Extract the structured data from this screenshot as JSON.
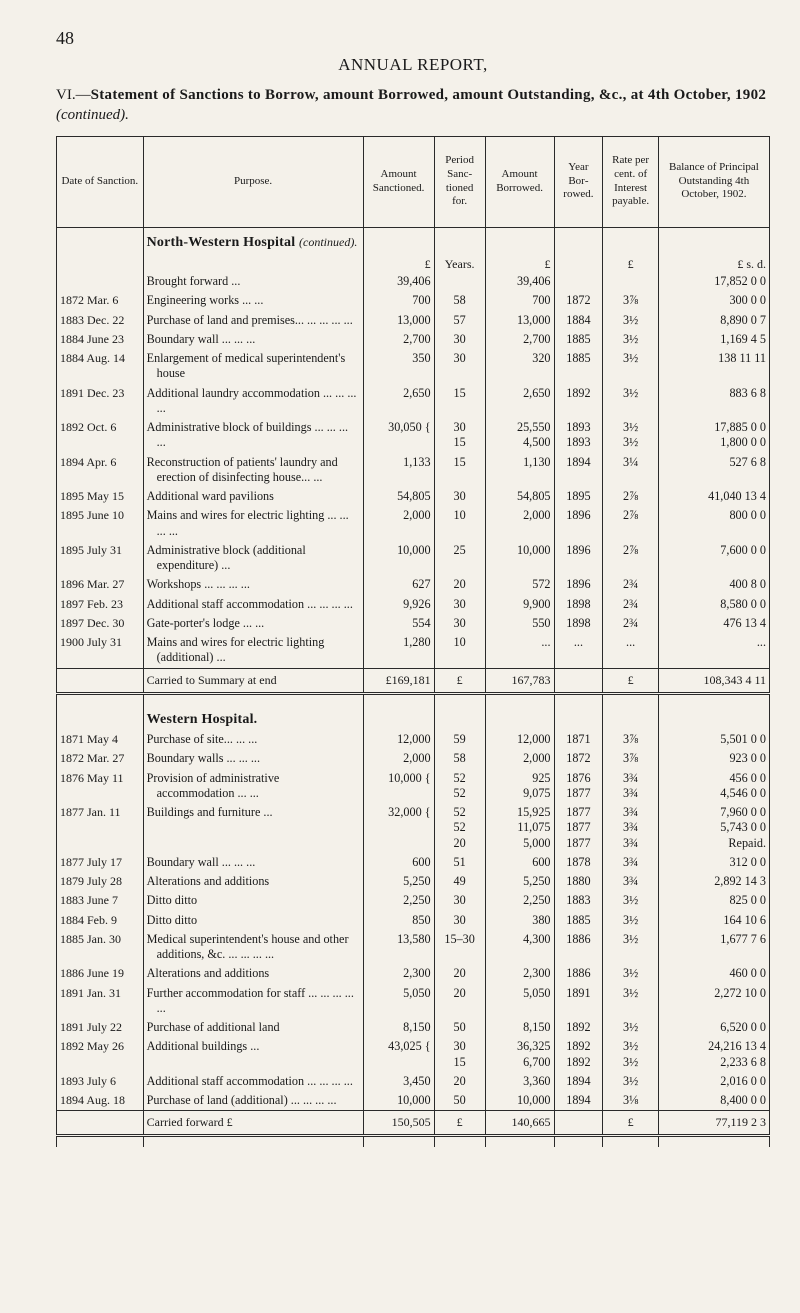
{
  "page_number": "48",
  "running_head": "ANNUAL REPORT,",
  "section_title_prefix": "VI.—",
  "section_title_main": "Statement of Sanctions to Borrow, amount Borrowed, amount Outstanding, &c., at 4th October, 1902",
  "section_title_suffix": " (continued).",
  "headers": {
    "date": "Date of Sanction.",
    "purpose": "Purpose.",
    "sanctioned": "Amount Sanctioned.",
    "period": "Period Sanc­tioned for.",
    "borrowed": "Amount Borrowed.",
    "year": "Year Bor­rowed.",
    "rate": "Rate per cent. of Interest pay­able.",
    "balance": "Balance of Principal Outstanding 4th October, 1902."
  },
  "unit_row": {
    "sanctioned": "£",
    "period": "Years.",
    "borrowed": "£",
    "rate": "£",
    "balance": "£   s.   d."
  },
  "hospitals": [
    {
      "group_name": "North-Western Hospital",
      "group_sub": "(continued).",
      "rows": [
        {
          "date": "",
          "purpose": "Brought forward   ...",
          "sanc": "39,406",
          "period": "",
          "borr": "39,406",
          "year": "",
          "rate": "",
          "bal": "17,852   0   0"
        },
        {
          "date": "1872 Mar.  6",
          "purpose": "Engineering works ... ...",
          "sanc": "700",
          "period": "58",
          "borr": "700",
          "year": "1872",
          "rate": "3⅞",
          "bal": "300   0   0"
        },
        {
          "date": "1883 Dec. 22",
          "purpose": "Purchase of land and pre­mises... ... ... ... ...",
          "sanc": "13,000",
          "period": "57",
          "borr": "13,000",
          "year": "1884",
          "rate": "3½",
          "bal": "8,890   0   7"
        },
        {
          "date": "1884 June 23",
          "purpose": "Boundary wall ... ... ...",
          "sanc": "2,700",
          "period": "30",
          "borr": "2,700",
          "year": "1885",
          "rate": "3½",
          "bal": "1,169   4   5"
        },
        {
          "date": "1884 Aug. 14",
          "purpose": "Enlargement of medical superintendent's house",
          "sanc": "350",
          "period": "30",
          "borr": "320",
          "year": "1885",
          "rate": "3½",
          "bal": "138 11 11"
        },
        {
          "date": "1891 Dec. 23",
          "purpose": "Additional laundry accom­modation ... ... ... ...",
          "sanc": "2,650",
          "period": "15",
          "borr": "2,650",
          "year": "1892",
          "rate": "3½",
          "bal": "883   6   8"
        },
        {
          "date": "1892 Oct.  6",
          "purpose": "Administrative block of buildings ... ... ... ...",
          "sanc": "30,050 {",
          "period": "30\n15",
          "borr": "25,550\n4,500",
          "year": "1893\n1893",
          "rate": "3½\n3½",
          "bal": "17,885   0   0\n1,800   0   0"
        },
        {
          "date": "1894 Apr.  6",
          "purpose": "Reconstruction of patients' laundry and erection of disinfecting house... ...",
          "sanc": "1,133",
          "period": "15",
          "borr": "1,130",
          "year": "1894",
          "rate": "3¼",
          "bal": "527   6   8"
        },
        {
          "date": "1895 May 15",
          "purpose": "Additional ward pavilions",
          "sanc": "54,805",
          "period": "30",
          "borr": "54,805",
          "year": "1895",
          "rate": "2⅞",
          "bal": "41,040 13   4"
        },
        {
          "date": "1895 June 10",
          "purpose": "Mains and wires for electric lighting ... ... ... ...",
          "sanc": "2,000",
          "period": "10",
          "borr": "2,000",
          "year": "1896",
          "rate": "2⅞",
          "bal": "800   0   0"
        },
        {
          "date": "1895 July 31",
          "purpose": "Administrative block (ad­ditional expenditure) ...",
          "sanc": "10,000",
          "period": "25",
          "borr": "10,000",
          "year": "1896",
          "rate": "2⅞",
          "bal": "7,600   0   0"
        },
        {
          "date": "1896 Mar. 27",
          "purpose": "Workshops ... ... ... ...",
          "sanc": "627",
          "period": "20",
          "borr": "572",
          "year": "1896",
          "rate": "2¾",
          "bal": "400   8   0"
        },
        {
          "date": "1897 Feb. 23",
          "purpose": "Additional staff accommo­dation   ... ... ... ...",
          "sanc": "9,926",
          "period": "30",
          "borr": "9,900",
          "year": "1898",
          "rate": "2¾",
          "bal": "8,580   0   0"
        },
        {
          "date": "1897 Dec. 30",
          "purpose": "Gate-porter's lodge ... ...",
          "sanc": "554",
          "period": "30",
          "borr": "550",
          "year": "1898",
          "rate": "2¾",
          "bal": "476 13   4"
        },
        {
          "date": "1900 July 31",
          "purpose": "Mains and wires for electric lighting (additional) ...",
          "sanc": "1,280",
          "period": "10",
          "borr": "...",
          "year": "...",
          "rate": "...",
          "bal": "..."
        }
      ],
      "total": {
        "label": "Carried to Summary at end",
        "sanc": "£169,181",
        "borr_prefix": "£",
        "borr": "167,783",
        "bal_prefix": "£",
        "bal": "108,343   4 11"
      }
    },
    {
      "group_name": "Western Hospital.",
      "group_sub": "",
      "rows": [
        {
          "date": "1871 May   4",
          "purpose": "Purchase of site... ... ...",
          "sanc": "12,000",
          "period": "59",
          "borr": "12,000",
          "year": "1871",
          "rate": "3⅞",
          "bal": "5,501   0   0"
        },
        {
          "date": "1872 Mar. 27",
          "purpose": "Boundary walls ... ... ...",
          "sanc": "2,000",
          "period": "58",
          "borr": "2,000",
          "year": "1872",
          "rate": "3⅞",
          "bal": "923   0   0"
        },
        {
          "date": "1876 May 11",
          "purpose": "Provision of administrative accommodation   ... ...",
          "sanc": "10,000 {",
          "period": "52\n52",
          "borr": "925\n9,075",
          "year": "1876\n1877",
          "rate": "3¾\n3¾",
          "bal": "456   0   0\n4,546   0   0"
        },
        {
          "date": "1877 Jan. 11",
          "purpose": "Buildings and furniture ...",
          "sanc": "32,000 {",
          "period": "52\n52\n20",
          "borr": "15,925\n11,075\n5,000",
          "year": "1877\n1877\n1877",
          "rate": "3¾\n3¾\n3¾",
          "bal": "7,960   0   0\n5,743   0   0\nRepaid."
        },
        {
          "date": "1877 July 17",
          "purpose": "Boundary wall ... ... ...",
          "sanc": "600",
          "period": "51",
          "borr": "600",
          "year": "1878",
          "rate": "3¾",
          "bal": "312   0   0"
        },
        {
          "date": "1879 July 28",
          "purpose": "Alterations and additions",
          "sanc": "5,250",
          "period": "49",
          "borr": "5,250",
          "year": "1880",
          "rate": "3¾",
          "bal": "2,892 14   3"
        },
        {
          "date": "1883 June  7",
          "purpose": "Ditto          ditto",
          "sanc": "2,250",
          "period": "30",
          "borr": "2,250",
          "year": "1883",
          "rate": "3½",
          "bal": "825   0   0"
        },
        {
          "date": "1884 Feb.  9",
          "purpose": "Ditto          ditto",
          "sanc": "850",
          "period": "30",
          "borr": "380",
          "year": "1885",
          "rate": "3½",
          "bal": "164 10   6"
        },
        {
          "date": "1885 Jan. 30",
          "purpose": "Medical superintendent's house and other addi­tions, &c. ... ... ... ...",
          "sanc": "13,580",
          "period": "15–30",
          "borr": "4,300",
          "year": "1886",
          "rate": "3½",
          "bal": "1,677   7   6"
        },
        {
          "date": "1886 June 19",
          "purpose": "Alterations and additions",
          "sanc": "2,300",
          "period": "20",
          "borr": "2,300",
          "year": "1886",
          "rate": "3½",
          "bal": "460   0   0"
        },
        {
          "date": "1891 Jan. 31",
          "purpose": "Further accommodation for staff ... ... ... ... ...",
          "sanc": "5,050",
          "period": "20",
          "borr": "5,050",
          "year": "1891",
          "rate": "3½",
          "bal": "2,272 10   0"
        },
        {
          "date": "1891 July 22",
          "purpose": "Purchase of additional land",
          "sanc": "8,150",
          "period": "50",
          "borr": "8,150",
          "year": "1892",
          "rate": "3½",
          "bal": "6,520   0   0"
        },
        {
          "date": "1892 May 26",
          "purpose": "Additional buildings   ...",
          "sanc": "43,025 {",
          "period": "30\n15",
          "borr": "36,325\n6,700",
          "year": "1892\n1892",
          "rate": "3½\n3½",
          "bal": "24,216 13   4\n2,233   6   8"
        },
        {
          "date": "1893 July  6",
          "purpose": "Additional staff accommo­dation   ... ... ... ...",
          "sanc": "3,450",
          "period": "20",
          "borr": "3,360",
          "year": "1894",
          "rate": "3½",
          "bal": "2,016   0   0"
        },
        {
          "date": "1894 Aug. 18",
          "purpose": "Purchase of land (addi­tional)   ... ... ... ...",
          "sanc": "10,000",
          "period": "50",
          "borr": "10,000",
          "year": "1894",
          "rate": "3⅛",
          "bal": "8,400   0   0"
        }
      ],
      "total": {
        "label": "Carried forward     £",
        "sanc": "150,505",
        "borr_prefix": "£",
        "borr": "140,665",
        "bal_prefix": "£",
        "bal": "77,119   2   3"
      }
    }
  ]
}
